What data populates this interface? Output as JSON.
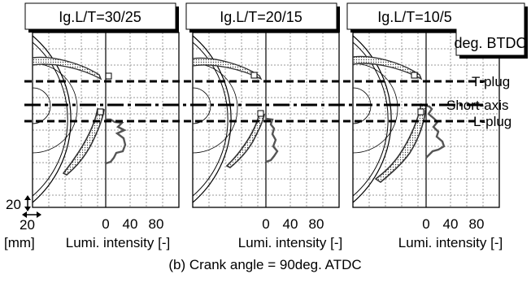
{
  "panels": [
    {
      "title": "Ig.L/T=30/25"
    },
    {
      "title": "Ig.L/T=20/15"
    },
    {
      "title": "Ig.L/T=10/5",
      "subtitle": "deg. BTDC"
    }
  ],
  "lines": {
    "t_plug": "T-plug",
    "short_axis": "Short-axis",
    "l_plug": "L-plug"
  },
  "scale": {
    "vertical": "20",
    "horizontal": "20",
    "unit": "[mm]"
  },
  "lumi_axis": {
    "ticks": [
      "0",
      "40",
      "80"
    ],
    "label": "Lumi. intensity [-]"
  },
  "caption": "(b) Crank angle = 90deg. ATDC"
}
